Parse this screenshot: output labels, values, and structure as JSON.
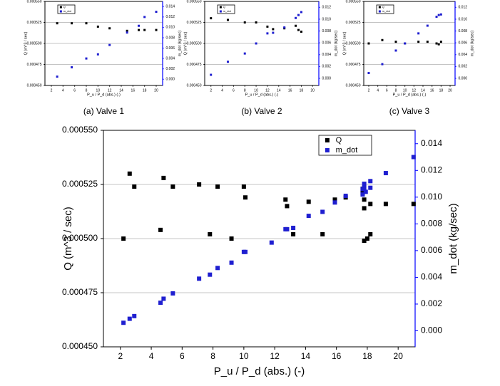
{
  "chart_data": [
    {
      "type": "scatter",
      "caption": "(a) Valve 1",
      "x_label": "P_u / P_d (abs.) (-)",
      "y_label": "Q (m^3 / sec)",
      "y2_label": "m_dot (kg/sec)",
      "xlim": [
        0.9,
        21.1
      ],
      "xticks": [
        2,
        4,
        6,
        8,
        10,
        12,
        14,
        16,
        18,
        20
      ],
      "ylim": [
        0.00045,
        0.00055
      ],
      "yticks": [
        {
          "value": 0.00045,
          "label": "0.000450"
        },
        {
          "value": 0.000475,
          "label": "0.000475"
        },
        {
          "value": 0.0005,
          "label": "0.000500"
        },
        {
          "value": 0.000525,
          "label": "0.000525"
        },
        {
          "value": 0.00055,
          "label": "0.000550"
        }
      ],
      "y2lim": [
        -0.0012,
        0.015
      ],
      "y2ticks": [
        {
          "value": 0,
          "label": "0.000"
        },
        {
          "value": 0.002,
          "label": "0.002"
        },
        {
          "value": 0.004,
          "label": "0.004"
        },
        {
          "value": 0.006,
          "label": "0.006"
        },
        {
          "value": 0.008,
          "label": "0.008"
        },
        {
          "value": 0.01,
          "label": "0.010"
        },
        {
          "value": 0.012,
          "label": "0.012"
        },
        {
          "value": 0.014,
          "label": "0.014"
        }
      ],
      "grid": true,
      "legend": "top-left",
      "y2_axis_color": "#0000ff",
      "series": [
        {
          "name": "Q",
          "color": "#000000",
          "x": [
            3,
            5.5,
            8,
            10,
            12,
            15,
            17,
            18,
            20
          ],
          "values": [
            0.000524,
            0.000524,
            0.000524,
            0.00052,
            0.000518,
            0.000515,
            0.000516,
            0.000516,
            0.000516
          ]
        },
        {
          "name": "m_dot",
          "color": "#1f1fd0",
          "axis": "y2",
          "x": [
            3,
            5.5,
            8,
            10,
            12,
            15,
            17,
            18,
            20
          ],
          "values": [
            0.0005,
            0.0023,
            0.004,
            0.0048,
            0.0066,
            0.009,
            0.0103,
            0.012,
            0.013
          ]
        }
      ]
    },
    {
      "type": "scatter",
      "caption": "(b) Valve 2",
      "x_label": "P_u / P_d (abs.) (-)",
      "y_label": "Q (m^3 / sec)",
      "y2_label": "m_dot (kg/sec)",
      "xlim": [
        0.9,
        21.1
      ],
      "xticks": [
        2,
        4,
        6,
        8,
        10,
        12,
        14,
        16,
        18,
        20
      ],
      "ylim": [
        0.00045,
        0.00055
      ],
      "yticks": [
        {
          "value": 0.00045,
          "label": "0.000450"
        },
        {
          "value": 0.000475,
          "label": "0.000475"
        },
        {
          "value": 0.0005,
          "label": "0.000500"
        },
        {
          "value": 0.000525,
          "label": "0.000525"
        },
        {
          "value": 0.00055,
          "label": "0.000550"
        }
      ],
      "y2lim": [
        -0.0012,
        0.013
      ],
      "y2ticks": [
        {
          "value": 0,
          "label": "0.000"
        },
        {
          "value": 0.002,
          "label": "0.002"
        },
        {
          "value": 0.004,
          "label": "0.004"
        },
        {
          "value": 0.006,
          "label": "0.006"
        },
        {
          "value": 0.008,
          "label": "0.008"
        },
        {
          "value": 0.01,
          "label": "0.010"
        },
        {
          "value": 0.012,
          "label": "0.012"
        }
      ],
      "grid": true,
      "legend": "top-left",
      "y2_axis_color": "#0000ff",
      "series": [
        {
          "name": "Q",
          "color": "#000000",
          "x": [
            2,
            5,
            8,
            10,
            12,
            13,
            15,
            17,
            17.5,
            18
          ],
          "values": [
            0.00053,
            0.000528,
            0.000525,
            0.000525,
            0.00052,
            0.000517,
            0.000518,
            0.000521,
            0.000516,
            0.000514
          ]
        },
        {
          "name": "m_dot",
          "color": "#1f1fd0",
          "axis": "y2",
          "x": [
            2,
            5,
            8,
            10,
            12,
            13,
            15,
            17,
            17.5,
            18
          ],
          "values": [
            0.0006,
            0.0028,
            0.0042,
            0.0059,
            0.0076,
            0.0077,
            0.0086,
            0.0102,
            0.0107,
            0.0112
          ]
        }
      ]
    },
    {
      "type": "scatter",
      "caption": "(c) Valve 3",
      "x_label": "P_u / P_d (abs.) (-)",
      "y_label": "Q (m^3 / sec)",
      "y2_label": "m_dot (kg/sec)",
      "xlim": [
        0.9,
        21.1
      ],
      "xticks": [
        2,
        4,
        6,
        8,
        10,
        12,
        14,
        16,
        18,
        20
      ],
      "ylim": [
        0.00045,
        0.00055
      ],
      "yticks": [
        {
          "value": 0.00045,
          "label": "0.000450"
        },
        {
          "value": 0.000475,
          "label": "0.000475"
        },
        {
          "value": 0.0005,
          "label": "0.000500"
        },
        {
          "value": 0.000525,
          "label": "0.000525"
        },
        {
          "value": 0.00055,
          "label": "0.000550"
        }
      ],
      "y2lim": [
        -0.0012,
        0.013
      ],
      "y2ticks": [
        {
          "value": 0,
          "label": "0.000"
        },
        {
          "value": 0.002,
          "label": "0.002"
        },
        {
          "value": 0.004,
          "label": "0.004"
        },
        {
          "value": 0.006,
          "label": "0.006"
        },
        {
          "value": 0.008,
          "label": "0.008"
        },
        {
          "value": 0.01,
          "label": "0.010"
        },
        {
          "value": 0.012,
          "label": "0.012"
        }
      ],
      "grid": true,
      "legend": "top-left",
      "y2_axis_color": "#0000ff",
      "series": [
        {
          "name": "Q",
          "color": "#000000",
          "x": [
            2,
            5,
            8,
            10,
            13,
            15,
            17,
            17.5,
            18
          ],
          "values": [
            0.0005,
            0.000504,
            0.000502,
            0.0005,
            0.000502,
            0.000502,
            0.0005,
            0.000499,
            0.000502
          ]
        },
        {
          "name": "m_dot",
          "color": "#1f1fd0",
          "axis": "y2",
          "x": [
            2,
            5,
            8,
            10,
            13,
            15,
            17,
            17.5,
            18
          ],
          "values": [
            0.0009,
            0.0024,
            0.0047,
            0.0059,
            0.0076,
            0.0089,
            0.0104,
            0.0107,
            0.0108
          ]
        }
      ]
    },
    {
      "type": "scatter",
      "x_label": "P_u / P_d (abs.) (-)",
      "y_label": "Q (m^3 / sec)",
      "y2_label": "m_dot (kg/sec)",
      "xlim": [
        0.9,
        21.1
      ],
      "xticks": [
        2,
        4,
        6,
        8,
        10,
        12,
        14,
        16,
        18,
        20
      ],
      "ylim": [
        0.00045,
        0.00055
      ],
      "yticks": [
        {
          "value": 0.00045,
          "label": "0.000450"
        },
        {
          "value": 0.000475,
          "label": "0.000475"
        },
        {
          "value": 0.0005,
          "label": "0.000500"
        },
        {
          "value": 0.000525,
          "label": "0.000525"
        },
        {
          "value": 0.00055,
          "label": "0.000550"
        }
      ],
      "y2lim": [
        -0.0012,
        0.015
      ],
      "y2ticks": [
        {
          "value": 0,
          "label": "0.000"
        },
        {
          "value": 0.002,
          "label": "0.002"
        },
        {
          "value": 0.004,
          "label": "0.004"
        },
        {
          "value": 0.006,
          "label": "0.006"
        },
        {
          "value": 0.008,
          "label": "0.008"
        },
        {
          "value": 0.01,
          "label": "0.010"
        },
        {
          "value": 0.012,
          "label": "0.012"
        },
        {
          "value": 0.014,
          "label": "0.014"
        }
      ],
      "grid": true,
      "legend": "top-right",
      "y2_axis_color": "#0000ff",
      "series": [
        {
          "name": "Q",
          "color": "#000000",
          "x": [
            2.2,
            2.6,
            2.9,
            4.6,
            4.8,
            5.4,
            7.1,
            7.8,
            8.3,
            9.2,
            10.0,
            10.1,
            12.7,
            12.8,
            13.2,
            14.2,
            15.1,
            15.9,
            16.6,
            17.7,
            17.7,
            17.8,
            17.8,
            17.8,
            18.0,
            18.2,
            18.2,
            19.2,
            21.0
          ],
          "values": [
            0.0005,
            0.00053,
            0.000524,
            0.000504,
            0.000528,
            0.000524,
            0.000525,
            0.000502,
            0.000524,
            0.0005,
            0.000524,
            0.000519,
            0.000518,
            0.000515,
            0.000502,
            0.000517,
            0.000502,
            0.000518,
            0.000519,
            0.000523,
            0.000521,
            0.000518,
            0.000514,
            0.000499,
            0.0005,
            0.000516,
            0.000502,
            0.000516,
            0.000516
          ]
        },
        {
          "name": "m_dot",
          "color": "#1f1fd0",
          "axis": "y2",
          "x": [
            2.2,
            2.6,
            2.9,
            4.6,
            4.8,
            5.4,
            7.1,
            7.8,
            8.3,
            9.2,
            10.0,
            10.1,
            11.8,
            12.7,
            12.8,
            13.2,
            14.2,
            15.1,
            15.9,
            16.6,
            17.7,
            17.7,
            17.8,
            17.8,
            17.9,
            18.2,
            18.2,
            19.2,
            21.0
          ],
          "values": [
            0.0006,
            0.0009,
            0.0011,
            0.0021,
            0.0024,
            0.0028,
            0.0039,
            0.0042,
            0.0047,
            0.0051,
            0.0059,
            0.0059,
            0.0066,
            0.0076,
            0.0076,
            0.0077,
            0.0086,
            0.0089,
            0.0096,
            0.0101,
            0.0102,
            0.0106,
            0.011,
            0.0107,
            0.0104,
            0.0112,
            0.0107,
            0.0118,
            0.013
          ]
        }
      ]
    }
  ]
}
